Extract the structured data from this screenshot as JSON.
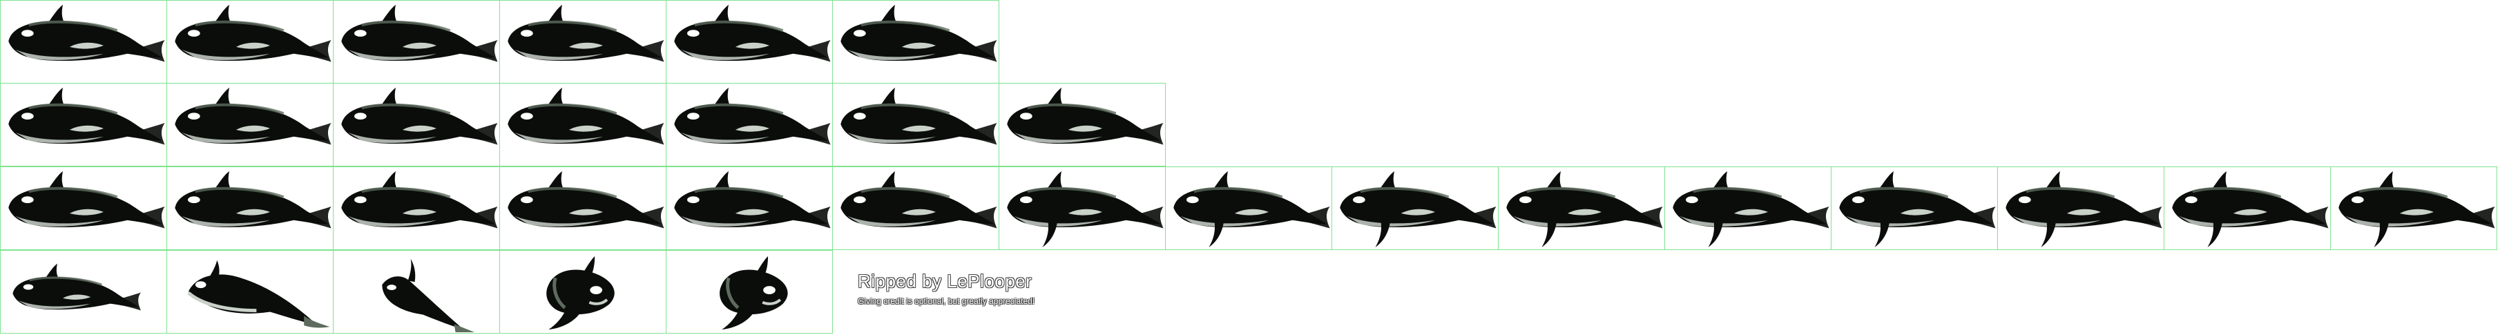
{
  "sheet": {
    "background": "#ffffff",
    "grid_color": "#7fe38f",
    "sprite_colors": {
      "body": "#0a0d0a",
      "sheen": "#5e6b5e",
      "patch": "#ffffff",
      "belly": "#c9d1c9"
    },
    "rows": [
      {
        "name": "swim-row-1",
        "frames": [
          "side",
          "side",
          "side",
          "side",
          "side",
          "side"
        ]
      },
      {
        "name": "swim-row-2",
        "frames": [
          "side",
          "side",
          "side",
          "side",
          "side",
          "side",
          "side"
        ]
      },
      {
        "name": "swim-row-3",
        "frames": [
          "side",
          "side",
          "side",
          "side",
          "side",
          "side",
          "side-fin",
          "side-fin",
          "side-fin",
          "side-fin",
          "side-fin",
          "side-fin",
          "side-fin",
          "side-fin",
          "side-fin"
        ]
      },
      {
        "name": "turn-row",
        "frames": [
          "side-small",
          "dive",
          "dive-steep",
          "turn-front",
          "turn-front-2"
        ]
      }
    ]
  },
  "credit": {
    "title": "Ripped by LePlooper",
    "note": "Giving credit is optional, but greatly appreciated!"
  }
}
